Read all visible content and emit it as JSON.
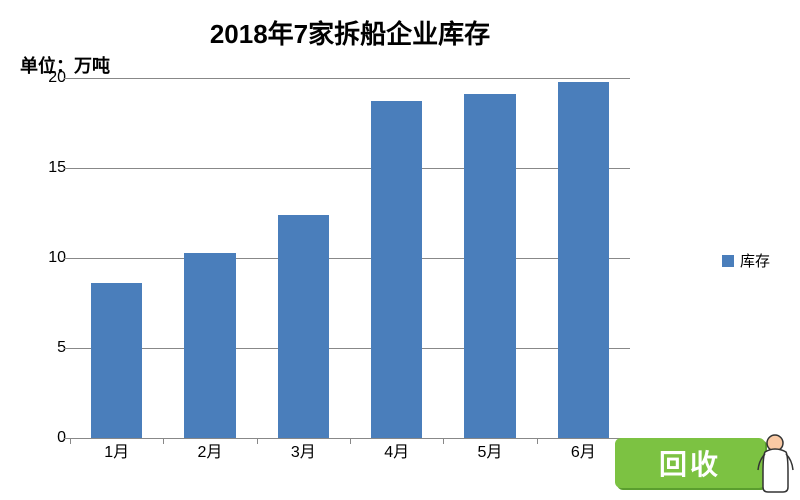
{
  "chart": {
    "type": "bar",
    "title": "2018年7家拆船企业库存",
    "title_fontsize": 26,
    "unit_label": "单位：万吨",
    "unit_fontsize": 18,
    "categories": [
      "1月",
      "2月",
      "3月",
      "4月",
      "5月",
      "6月"
    ],
    "values": [
      8.6,
      10.3,
      12.4,
      18.7,
      19.1,
      19.8
    ],
    "bar_color": "#4a7ebb",
    "bar_width": 0.55,
    "axis_color": "#888888",
    "grid_color": "#888888",
    "grid_line_width": 1,
    "background_color": "#ffffff",
    "ylim": [
      0,
      20
    ],
    "ytick_step": 5,
    "yticks": [
      0,
      5,
      10,
      15,
      20
    ],
    "tick_fontsize": 16,
    "xlabel_fontsize": 16,
    "legend_label": "库存",
    "legend_fontsize": 15,
    "legend_swatch_color": "#4a7ebb"
  },
  "watermark": {
    "text": "回收",
    "box_color": "#7cc242",
    "box_shadow_color": "#5a9e2e",
    "figure_body_color": "#ffffff",
    "figure_head_color": "#f9c9a4",
    "figure_outline": "#333333"
  }
}
